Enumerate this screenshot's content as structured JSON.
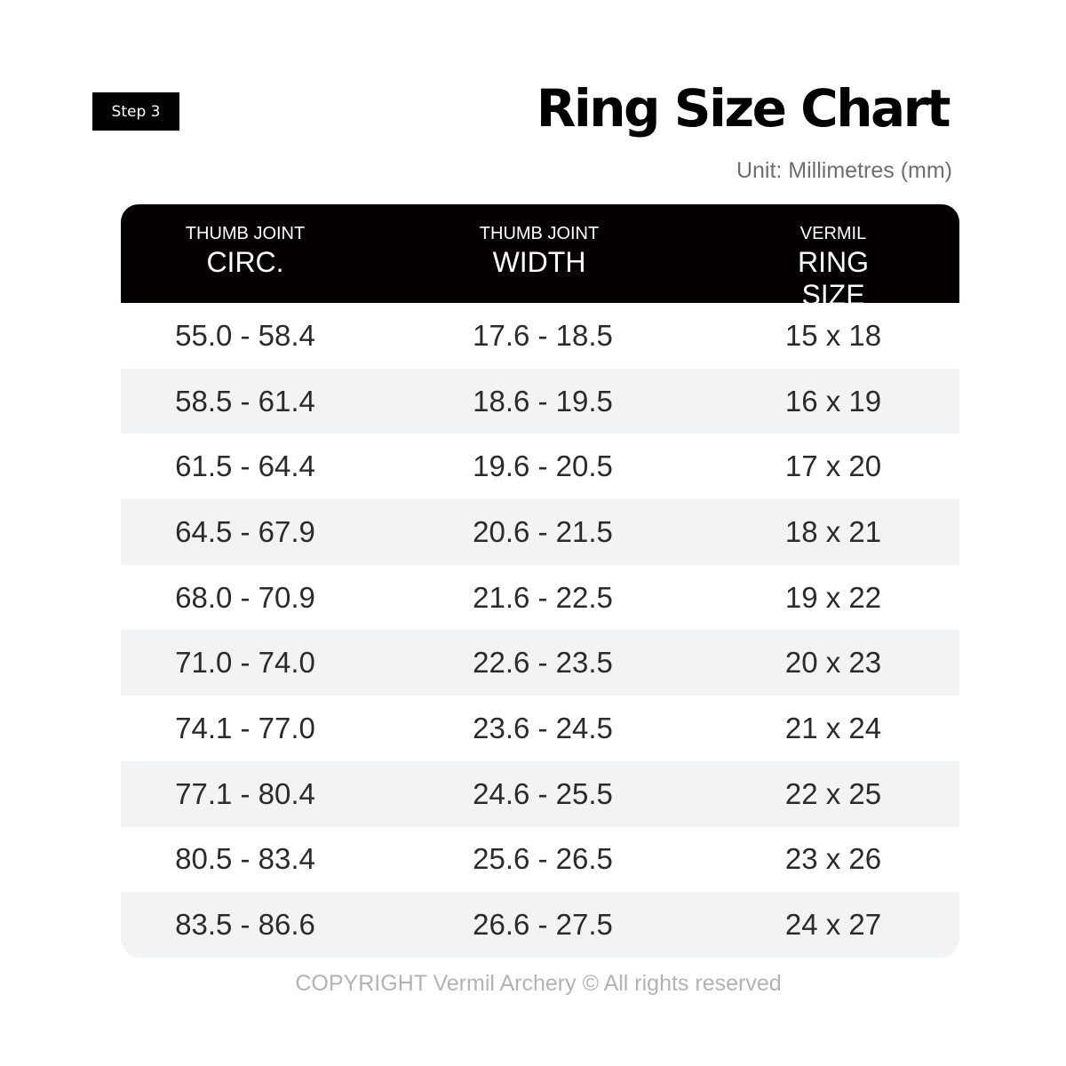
{
  "step_label": "Step 3",
  "title": "Ring Size Chart",
  "unit": "Unit: Millimetres (mm)",
  "columns": [
    {
      "line1": "THUMB JOINT",
      "line2": "CIRC."
    },
    {
      "line1": "THUMB JOINT",
      "line2": "WIDTH"
    },
    {
      "line1": "VERMIL",
      "line2": "RING SIZE"
    }
  ],
  "rows": [
    [
      "55.0 - 58.4",
      "17.6 - 18.5",
      "15 x 18"
    ],
    [
      "58.5 - 61.4",
      "18.6 - 19.5",
      "16 x 19"
    ],
    [
      "61.5 - 64.4",
      "19.6 - 20.5",
      "17 x 20"
    ],
    [
      "64.5 - 67.9",
      "20.6 - 21.5",
      "18 x 21"
    ],
    [
      "68.0 - 70.9",
      "21.6 - 22.5",
      "19 x 22"
    ],
    [
      "71.0 - 74.0",
      "22.6 - 23.5",
      "20 x 23"
    ],
    [
      "74.1 - 77.0",
      "23.6 - 24.5",
      "21 x 24"
    ],
    [
      "77.1 - 80.4",
      "24.6 - 25.5",
      "22 x 25"
    ],
    [
      "80.5 - 83.4",
      "25.6 - 26.5",
      "23 x 26"
    ],
    [
      "83.5 - 86.6",
      "26.6 - 27.5",
      "24 x 27"
    ]
  ],
  "copyright": "COPYRIGHT Vermil Archery © All rights reserved"
}
